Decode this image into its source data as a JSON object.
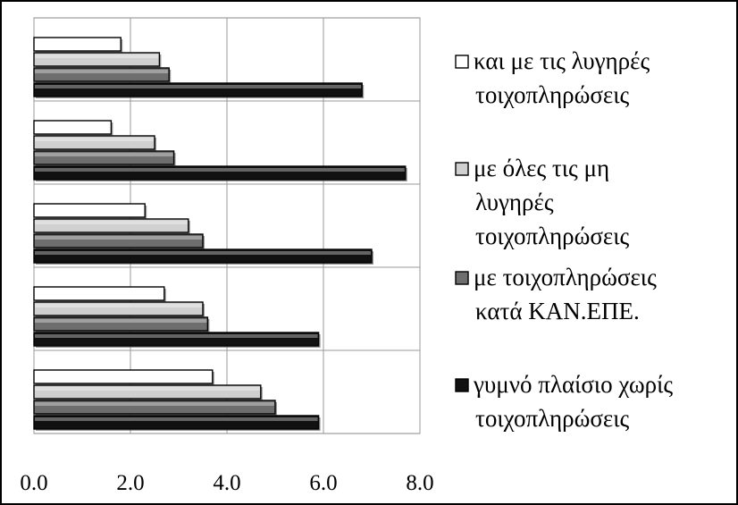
{
  "chart_data": {
    "type": "bar",
    "orientation": "horizontal",
    "xlim": [
      0,
      8
    ],
    "x_ticks": [
      "0.0",
      "2.0",
      "4.0",
      "6.0",
      "8.0"
    ],
    "grid": "vertical",
    "legend_position": "right",
    "categories": [
      "",
      "",
      "",
      "",
      ""
    ],
    "series": [
      {
        "name": "και με τις λυγηρές τοιχοπληρώσεις",
        "legend_lines": [
          "και με τις λυγηρές",
          "τοιχοπληρώσεις"
        ],
        "color": "#ffffff",
        "values": [
          1.8,
          1.6,
          2.3,
          2.7,
          3.7
        ]
      },
      {
        "name": "με όλες τις μη λυγηρές τοιχοπληρώσεις",
        "legend_lines": [
          "με όλες τις μη",
          "λυγηρές",
          "τοιχοπληρώσεις"
        ],
        "color": "#d0d0d0",
        "values": [
          2.6,
          2.5,
          3.2,
          3.5,
          4.7
        ]
      },
      {
        "name": "με τοιχοπληρώσεις κατά ΚΑΝ.ΕΠΕ.",
        "legend_lines": [
          "με τοιχοπληρώσεις",
          "κατά ΚΑΝ.ΕΠΕ."
        ],
        "color": "#6e6e6e",
        "values": [
          2.8,
          2.9,
          3.5,
          3.6,
          5.0
        ]
      },
      {
        "name": "γυμνό πλαίσιο χωρίς τοιχοπληρώσεις",
        "legend_lines": [
          "γυμνό πλαίσιο χωρίς",
          "τοιχοπληρώσεις"
        ],
        "color": "#111111",
        "values": [
          6.8,
          7.7,
          7.0,
          5.9,
          5.9
        ]
      }
    ]
  }
}
